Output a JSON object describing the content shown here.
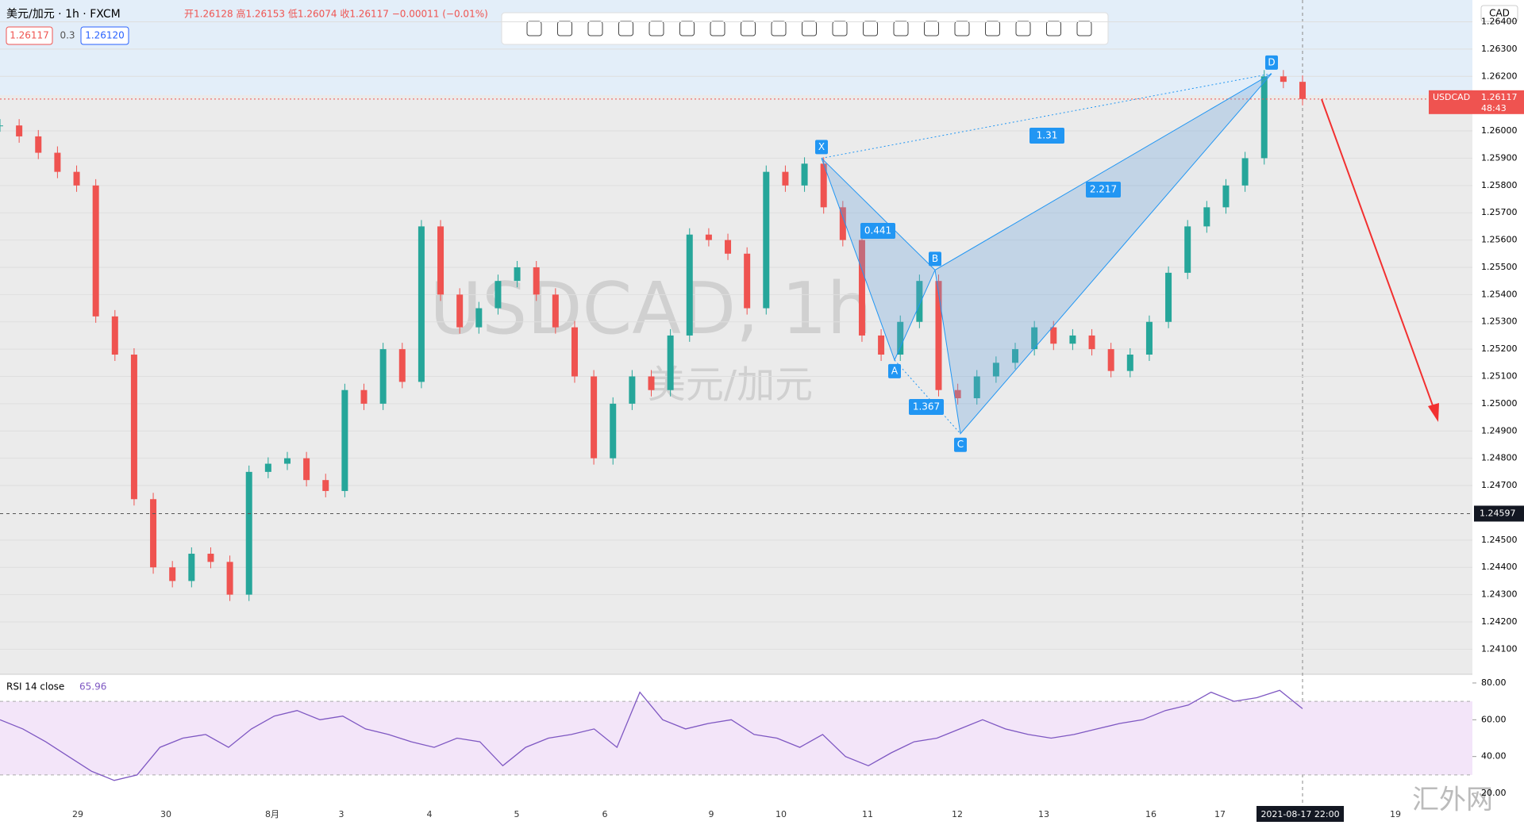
{
  "header": {
    "symbol": "美元/加元 · 1h · FXCM",
    "ohlc": "开1.26128 高1.26153 低1.26074 收1.26117 −0.00011 (−0.01%)",
    "bid": "1.26117",
    "spread": "0.3",
    "ask": "1.26120",
    "currency": "CAD"
  },
  "watermark": {
    "title": "USDCAD, 1h",
    "subtitle": "美元/加元"
  },
  "site_mark": "汇外网",
  "chart_data": [
    {
      "type": "candlestick",
      "name": "USDCAD",
      "last_price": {
        "value": 1.26117,
        "label": "1.26117"
      },
      "countdown": "48:43",
      "crosshair": {
        "value": 1.24597,
        "label": "1.24597"
      },
      "close": [
        1.2602,
        1.2598,
        1.2592,
        1.2585,
        1.258,
        1.2532,
        1.2518,
        1.2465,
        1.244,
        1.2435,
        1.2445,
        1.2442,
        1.243,
        1.2475,
        1.2478,
        1.248,
        1.2472,
        1.2468,
        1.2505,
        1.25,
        1.252,
        1.2508,
        1.2565,
        1.254,
        1.2528,
        1.2535,
        1.2545,
        1.255,
        1.254,
        1.2528,
        1.251,
        1.248,
        1.25,
        1.251,
        1.2505,
        1.2525,
        1.2562,
        1.256,
        1.2555,
        1.2535,
        1.2585,
        1.258,
        1.2588,
        1.2572,
        1.256,
        1.2525,
        1.2518,
        1.253,
        1.2545,
        1.2505,
        1.2502,
        1.251,
        1.2515,
        1.252,
        1.2528,
        1.2522,
        1.2525,
        1.252,
        1.2512,
        1.2518,
        1.253,
        1.2548,
        1.2565,
        1.2572,
        1.258,
        1.259,
        1.262,
        1.2618,
        1.26117
      ],
      "ylim": [
        1.24008,
        1.2648
      ],
      "yticks": [
        {
          "value": 1.241,
          "label": "1.24100"
        },
        {
          "value": 1.242,
          "label": "1.24200"
        },
        {
          "value": 1.243,
          "label": "1.24300"
        },
        {
          "value": 1.244,
          "label": "1.24400"
        },
        {
          "value": 1.245,
          "label": "1.24500"
        },
        {
          "value": 1.247,
          "label": "1.24700"
        },
        {
          "value": 1.248,
          "label": "1.24800"
        },
        {
          "value": 1.249,
          "label": "1.24900"
        },
        {
          "value": 1.25,
          "label": "1.25000"
        },
        {
          "value": 1.251,
          "label": "1.25100"
        },
        {
          "value": 1.252,
          "label": "1.25200"
        },
        {
          "value": 1.253,
          "label": "1.25300"
        },
        {
          "value": 1.254,
          "label": "1.25400"
        },
        {
          "value": 1.255,
          "label": "1.25500"
        },
        {
          "value": 1.256,
          "label": "1.25600"
        },
        {
          "value": 1.257,
          "label": "1.25700"
        },
        {
          "value": 1.258,
          "label": "1.25800"
        },
        {
          "value": 1.259,
          "label": "1.25900"
        },
        {
          "value": 1.26,
          "label": "1.26000"
        },
        {
          "value": 1.262,
          "label": "1.26200"
        },
        {
          "value": 1.263,
          "label": "1.26300"
        },
        {
          "value": 1.264,
          "label": "1.26400"
        }
      ],
      "pattern": [
        {
          "label": "X",
          "value": 1.259
        },
        {
          "label": "A",
          "value": 1.2516
        },
        {
          "label": "B",
          "value": 1.2549
        },
        {
          "label": "C",
          "value": 1.2489
        },
        {
          "label": "D",
          "value": 1.2621
        }
      ],
      "ratios": [
        "1.31",
        "0.441",
        "2.217",
        "1.367"
      ],
      "dates": [
        "29",
        "30",
        "8月",
        "3",
        "4",
        "5",
        "6",
        "9",
        "10",
        "11",
        "12",
        "13",
        "16",
        "17",
        "2021-08-17  22:00",
        "19"
      ]
    },
    {
      "type": "line",
      "name": "RSI 14 close",
      "last": "65.96",
      "color": "#7e57c2",
      "values": [
        60,
        55,
        48,
        40,
        32,
        27,
        30,
        45,
        50,
        52,
        45,
        55,
        62,
        65,
        60,
        62,
        55,
        52,
        48,
        45,
        50,
        48,
        35,
        45,
        50,
        52,
        55,
        45,
        75,
        60,
        55,
        58,
        60,
        52,
        50,
        45,
        52,
        40,
        35,
        42,
        48,
        50,
        55,
        60,
        55,
        52,
        50,
        52,
        55,
        58,
        60,
        65,
        68,
        75,
        70,
        72,
        76,
        66
      ],
      "ylim": [
        15.7,
        84.3
      ],
      "yticks": [
        {
          "value": 20,
          "label": "20.00"
        },
        {
          "value": 40,
          "label": "40.00"
        },
        {
          "value": 60,
          "label": "60.00"
        },
        {
          "value": 80,
          "label": "80.00"
        }
      ]
    }
  ]
}
